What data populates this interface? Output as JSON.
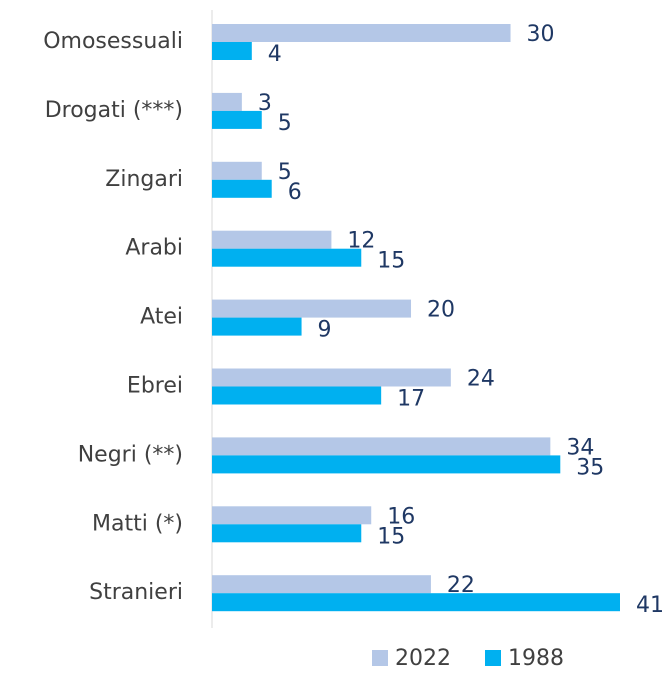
{
  "chart_data": {
    "type": "hbar",
    "categories": [
      "Omosessuali",
      "Drogati (***)",
      "Zingari",
      "Arabi",
      "Atei",
      "Ebrei",
      "Negri (**)",
      "Matti (*)",
      "Stranieri"
    ],
    "series": [
      {
        "name": "2022",
        "color": "#b4c7e7",
        "values": [
          30,
          3,
          5,
          12,
          20,
          24,
          34,
          16,
          22
        ]
      },
      {
        "name": "1988",
        "color": "#00b0f0",
        "values": [
          4,
          5,
          6,
          15,
          9,
          17,
          35,
          15,
          41
        ]
      }
    ],
    "legend": "bottom"
  }
}
